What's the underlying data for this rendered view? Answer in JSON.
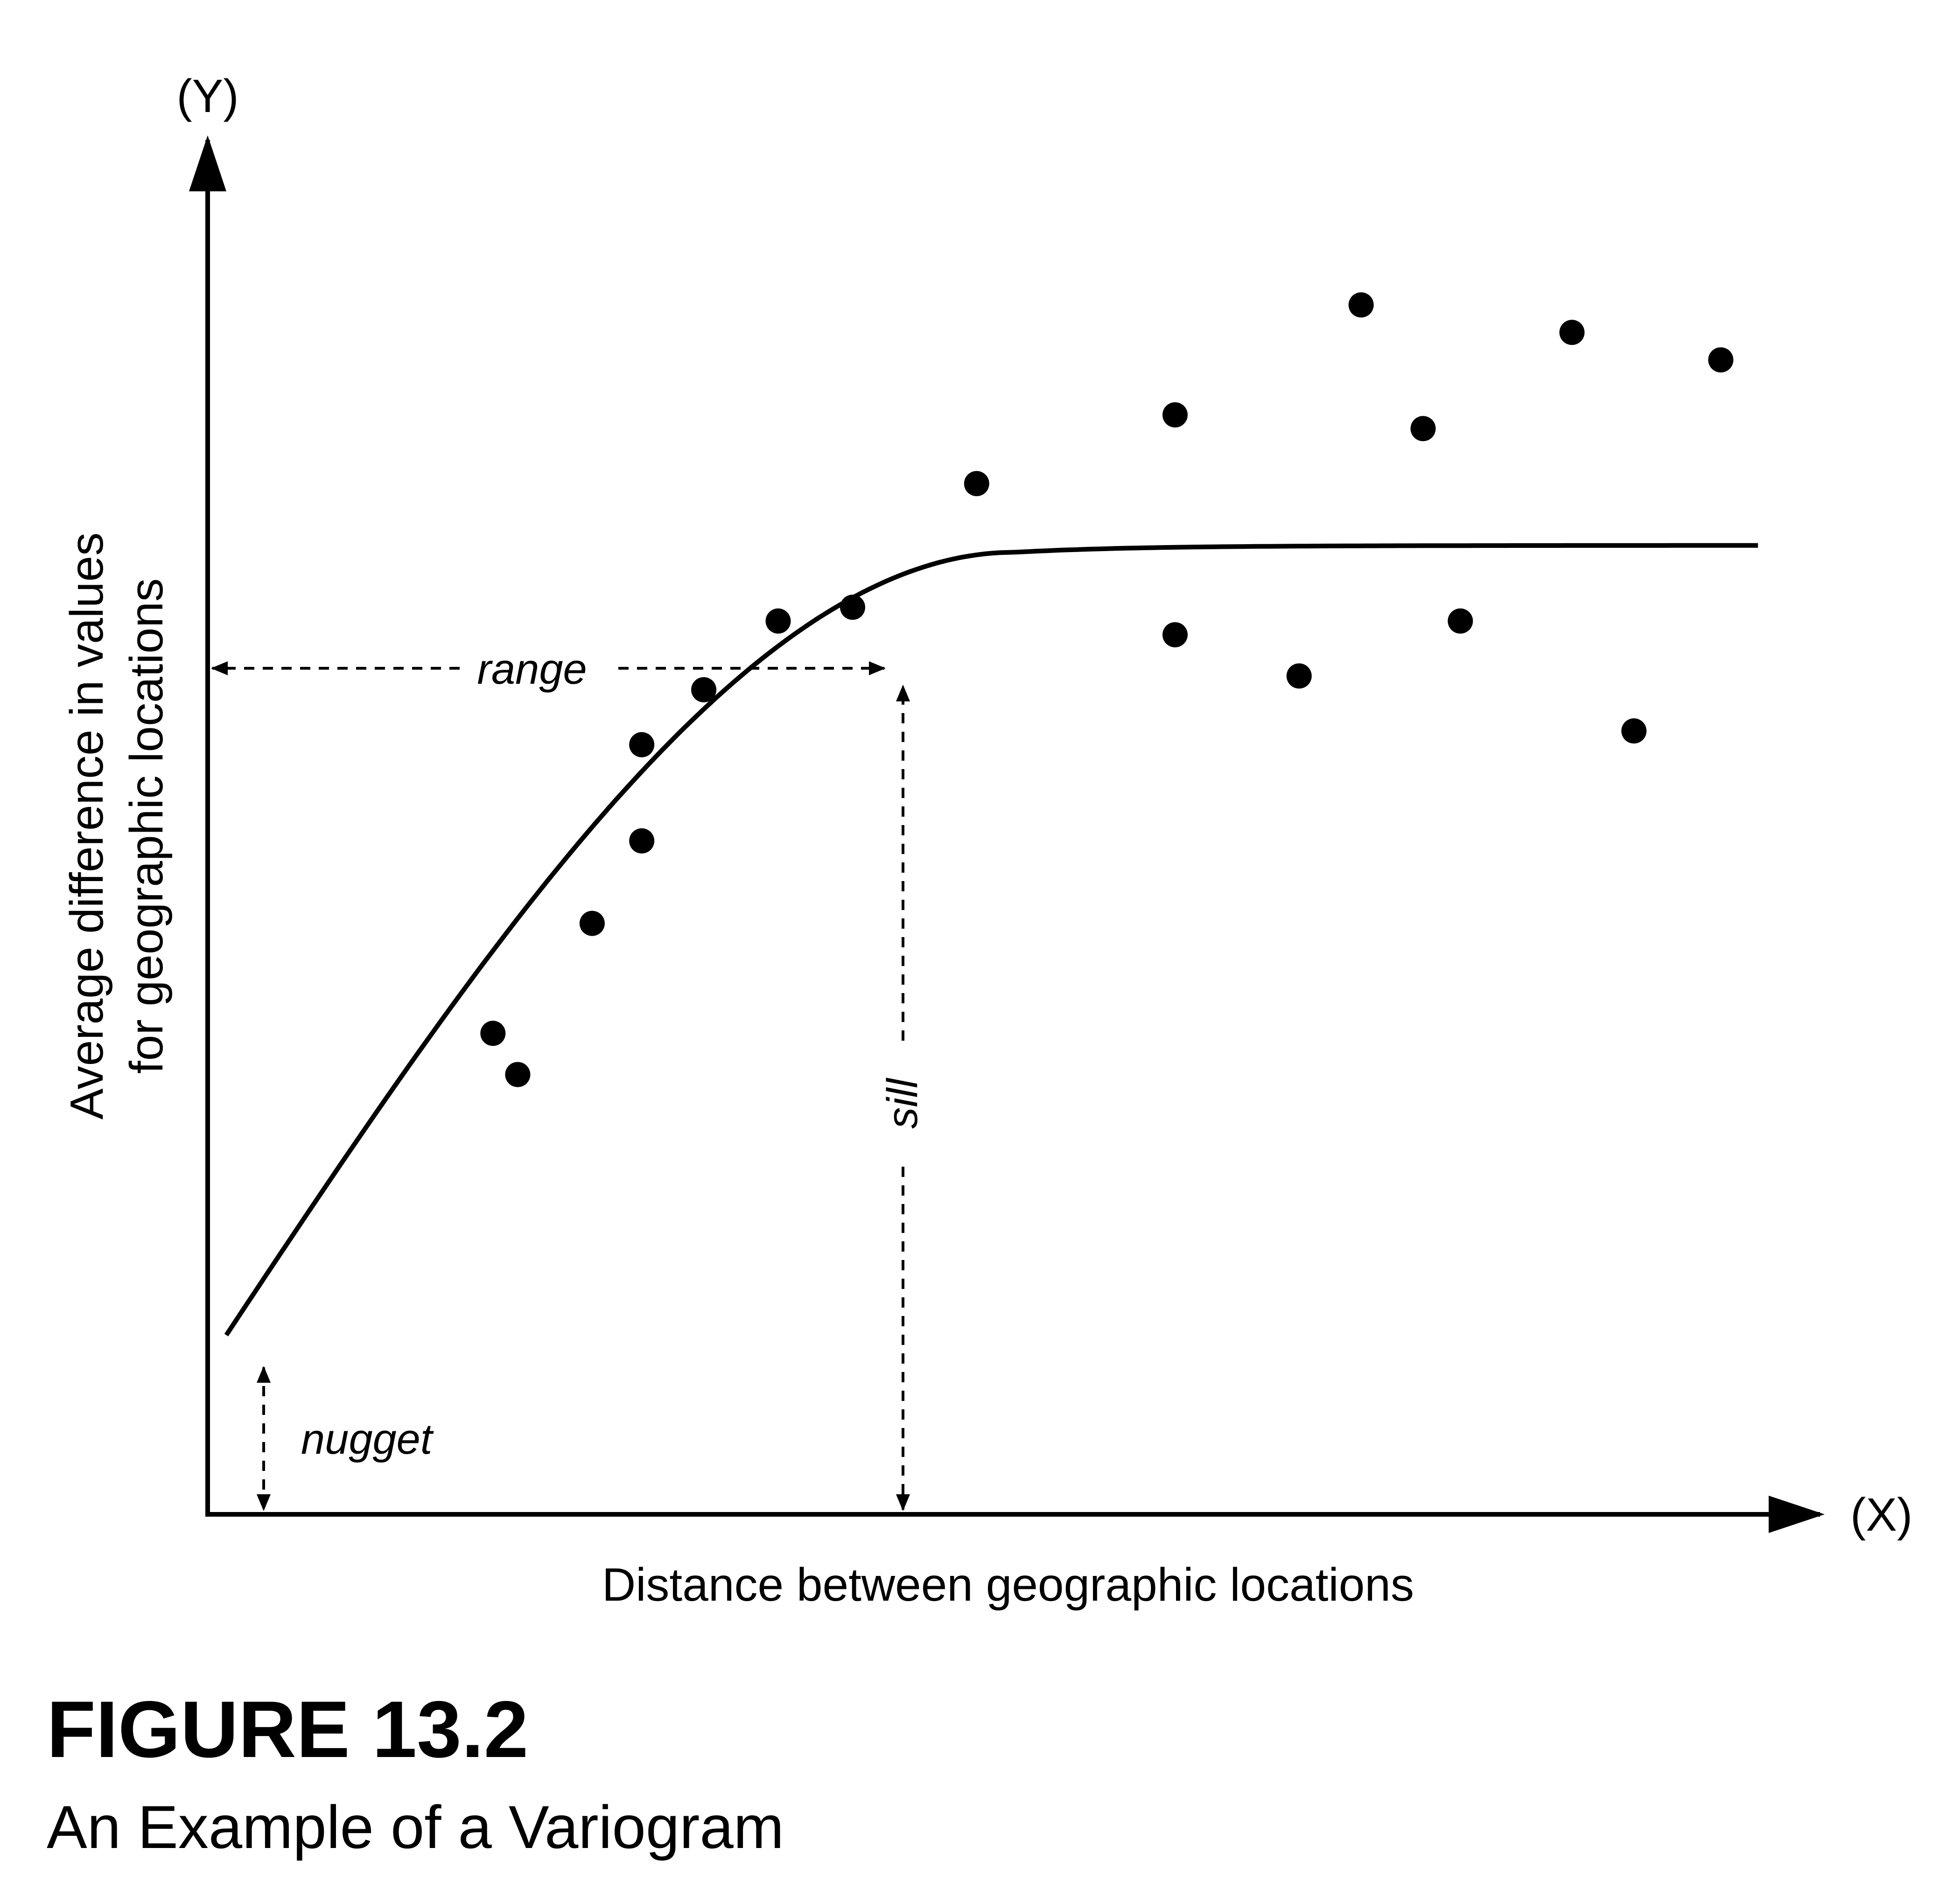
{
  "figure": {
    "title": "FIGURE 13.2",
    "caption": "An Example of a Variogram"
  },
  "axes": {
    "y_marker": "(Y)",
    "x_marker": "(X)",
    "y_label_line1": "Average difference in values",
    "y_label_line2": "for geographic locations",
    "x_label": "Distance between geographic locations"
  },
  "annotations": {
    "range": "range",
    "sill": "sill",
    "nugget": "nugget"
  },
  "chart_data": {
    "type": "scatter",
    "description_units": "schematic, unitless",
    "points": [
      [
        2.3,
        3.5
      ],
      [
        2.5,
        3.2
      ],
      [
        3.1,
        4.3
      ],
      [
        3.5,
        5.6
      ],
      [
        3.5,
        4.9
      ],
      [
        4.0,
        6.0
      ],
      [
        4.6,
        6.5
      ],
      [
        5.2,
        6.6
      ],
      [
        6.2,
        7.5
      ],
      [
        7.8,
        8.0
      ],
      [
        7.8,
        6.4
      ],
      [
        8.8,
        6.1
      ],
      [
        9.3,
        8.8
      ],
      [
        9.8,
        7.9
      ],
      [
        10.1,
        6.5
      ],
      [
        11.0,
        8.6
      ],
      [
        11.5,
        5.7
      ],
      [
        12.2,
        8.4
      ]
    ],
    "fitted_curve": {
      "model": "spherical",
      "nugget": 1.1,
      "sill": 7.0,
      "range": 6.5,
      "x_end": 12.5
    },
    "xlim": [
      0,
      13.0
    ],
    "ylim": [
      0,
      10.0
    ]
  },
  "colors": {
    "ink": "#000000",
    "background": "#ffffff"
  }
}
